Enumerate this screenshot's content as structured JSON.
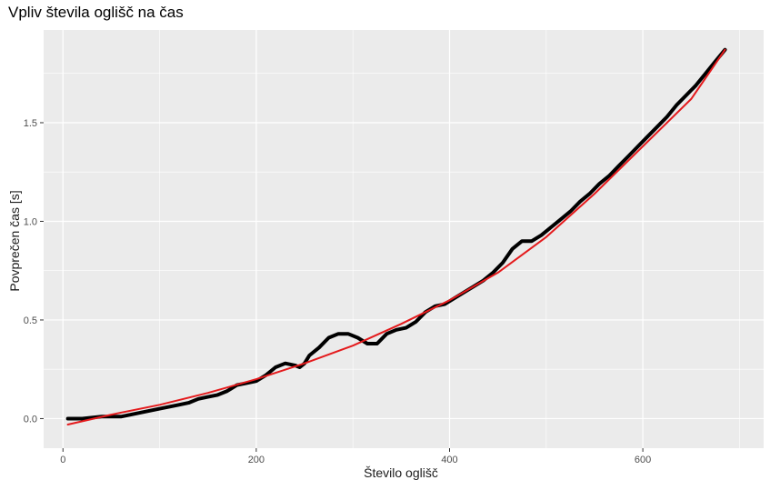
{
  "chart_data": {
    "type": "line",
    "title": "Vpliv števila oglišč na čas",
    "xlabel": "Število oglišč",
    "ylabel": "Povprečen čas [s]",
    "xlim": [
      -20,
      725
    ],
    "ylim": [
      -0.15,
      1.97
    ],
    "x_ticks": [
      0,
      200,
      400,
      600
    ],
    "y_ticks": [
      0.0,
      0.5,
      1.0,
      1.5
    ],
    "x_tick_labels": [
      "0",
      "200",
      "400",
      "600"
    ],
    "y_tick_labels": [
      "0.0",
      "0.5",
      "1.0",
      "1.5"
    ],
    "grid": true,
    "legend": "none",
    "series": [
      {
        "color": "#000000",
        "points": [
          [
            5,
            0.0
          ],
          [
            20,
            0.0
          ],
          [
            40,
            0.01
          ],
          [
            60,
            0.01
          ],
          [
            80,
            0.03
          ],
          [
            100,
            0.05
          ],
          [
            110,
            0.06
          ],
          [
            120,
            0.07
          ],
          [
            130,
            0.08
          ],
          [
            140,
            0.1
          ],
          [
            150,
            0.11
          ],
          [
            160,
            0.12
          ],
          [
            170,
            0.14
          ],
          [
            180,
            0.17
          ],
          [
            190,
            0.18
          ],
          [
            200,
            0.19
          ],
          [
            210,
            0.22
          ],
          [
            220,
            0.26
          ],
          [
            230,
            0.28
          ],
          [
            240,
            0.27
          ],
          [
            245,
            0.26
          ],
          [
            250,
            0.28
          ],
          [
            255,
            0.32
          ],
          [
            265,
            0.36
          ],
          [
            275,
            0.41
          ],
          [
            285,
            0.43
          ],
          [
            295,
            0.43
          ],
          [
            305,
            0.41
          ],
          [
            315,
            0.38
          ],
          [
            325,
            0.38
          ],
          [
            335,
            0.43
          ],
          [
            345,
            0.45
          ],
          [
            355,
            0.46
          ],
          [
            365,
            0.49
          ],
          [
            375,
            0.54
          ],
          [
            385,
            0.57
          ],
          [
            395,
            0.58
          ],
          [
            405,
            0.61
          ],
          [
            415,
            0.64
          ],
          [
            425,
            0.67
          ],
          [
            435,
            0.7
          ],
          [
            445,
            0.74
          ],
          [
            455,
            0.79
          ],
          [
            465,
            0.86
          ],
          [
            475,
            0.9
          ],
          [
            485,
            0.9
          ],
          [
            495,
            0.93
          ],
          [
            505,
            0.97
          ],
          [
            515,
            1.01
          ],
          [
            525,
            1.05
          ],
          [
            535,
            1.1
          ],
          [
            545,
            1.14
          ],
          [
            555,
            1.19
          ],
          [
            565,
            1.23
          ],
          [
            575,
            1.28
          ],
          [
            585,
            1.33
          ],
          [
            595,
            1.38
          ],
          [
            605,
            1.43
          ],
          [
            615,
            1.48
          ],
          [
            625,
            1.53
          ],
          [
            635,
            1.59
          ],
          [
            645,
            1.64
          ],
          [
            655,
            1.69
          ],
          [
            665,
            1.75
          ],
          [
            675,
            1.81
          ],
          [
            685,
            1.87
          ]
        ]
      },
      {
        "color": "#e41a1c",
        "points": [
          [
            5,
            -0.03
          ],
          [
            50,
            0.02
          ],
          [
            100,
            0.07
          ],
          [
            150,
            0.13
          ],
          [
            200,
            0.2
          ],
          [
            250,
            0.28
          ],
          [
            300,
            0.37
          ],
          [
            350,
            0.48
          ],
          [
            400,
            0.6
          ],
          [
            450,
            0.74
          ],
          [
            500,
            0.92
          ],
          [
            550,
            1.14
          ],
          [
            600,
            1.38
          ],
          [
            650,
            1.62
          ],
          [
            685,
            1.87
          ]
        ]
      }
    ]
  }
}
